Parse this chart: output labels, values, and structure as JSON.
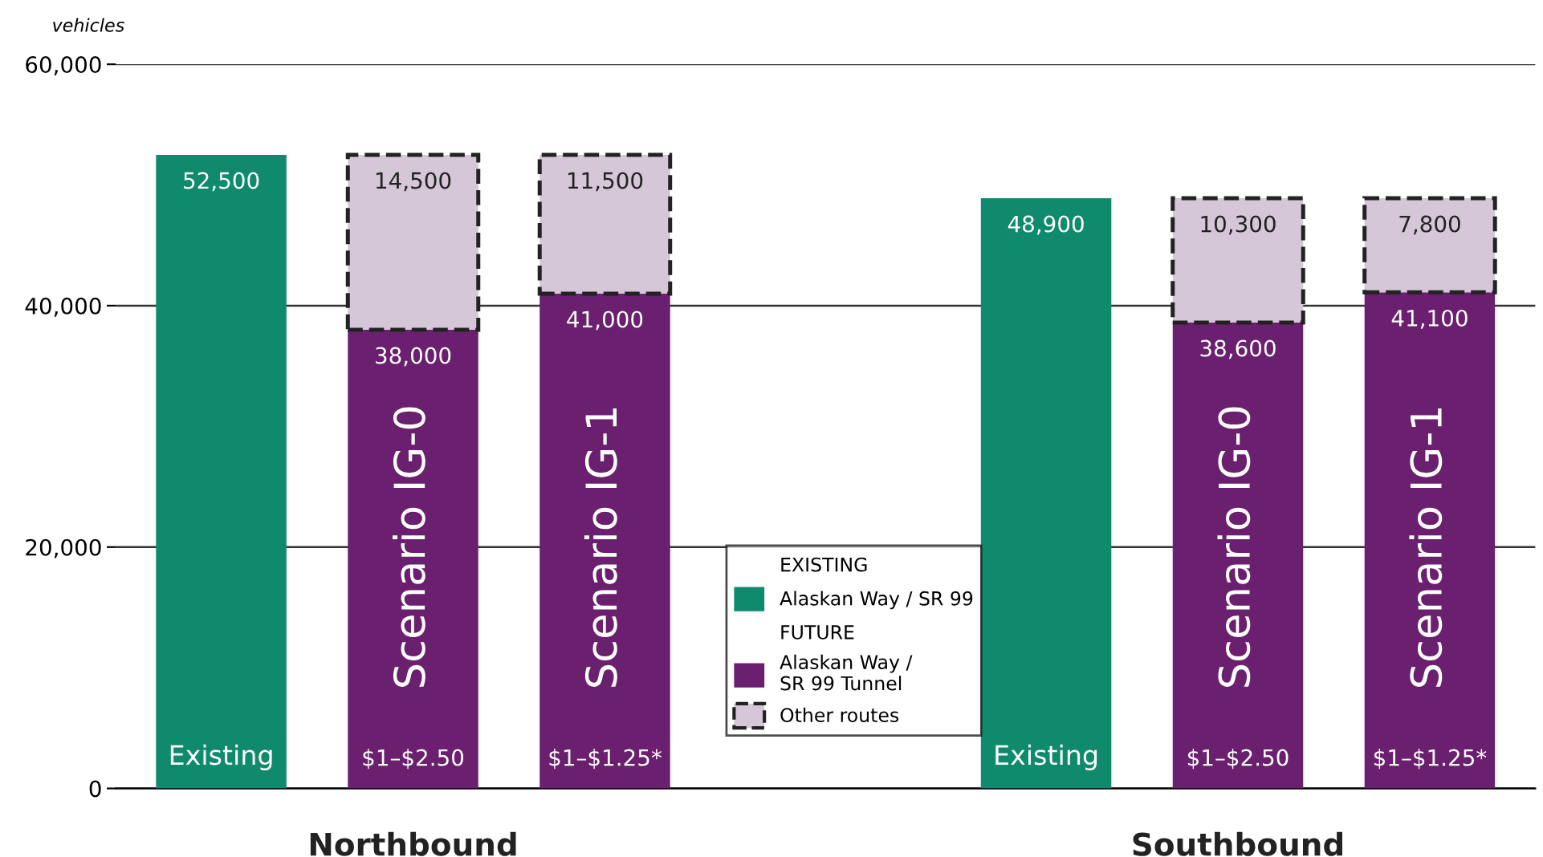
{
  "chart_data": {
    "type": "bar",
    "stacked": true,
    "ylabel": "vehicles",
    "categories": [
      "Existing",
      "$1–$2.50",
      "$1–$1.25*",
      "Existing",
      "$1–$2.50",
      "$1–$1.25*"
    ],
    "series": [
      {
        "name": "Alaskan Way / SR 99",
        "color": "#0f8a6c",
        "values": [
          52500,
          null,
          null,
          48900,
          null,
          null
        ],
        "value_labels": [
          "52,500",
          null,
          null,
          "48,900",
          null,
          null
        ]
      },
      {
        "name": "Alaskan Way / SR 99 Tunnel",
        "color": "#6b1f6f",
        "values": [
          null,
          38000,
          41000,
          null,
          38600,
          41100
        ],
        "value_labels": [
          null,
          "38,000",
          "41,000",
          null,
          "38,600",
          "41,100"
        ]
      },
      {
        "name": "Other routes",
        "color": "#d5c7d8",
        "line_style": "dashed",
        "values": [
          null,
          14500,
          11500,
          null,
          10300,
          7800
        ],
        "value_labels": [
          null,
          "14,500",
          "11,500",
          null,
          "10,300",
          "7,800"
        ]
      }
    ],
    "ylim": [
      0,
      60000
    ],
    "yticks": [
      {
        "value": 0,
        "label": "0"
      },
      {
        "value": 20000,
        "label": "20,000"
      },
      {
        "value": 40000,
        "label": "40,000"
      },
      {
        "value": 60000,
        "label": "60,000"
      }
    ],
    "grid": "y",
    "legend": "bottom",
    "annotations": [
      "EXISTING",
      "FUTURE",
      "Scenario IG-0",
      "Scenario IG-1",
      "Scenario IG-0",
      "Scenario IG-1",
      "Northbound",
      "Southbound"
    ]
  }
}
